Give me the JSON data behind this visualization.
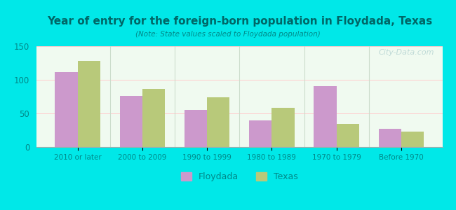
{
  "title": "Year of entry for the foreign-born population in Floydada, Texas",
  "subtitle": "(Note: State values scaled to Floydada population)",
  "categories": [
    "2010 or later",
    "2000 to 2009",
    "1990 to 1999",
    "1980 to 1989",
    "1970 to 1979",
    "Before 1970"
  ],
  "floydada_values": [
    111,
    76,
    55,
    40,
    91,
    27
  ],
  "texas_values": [
    128,
    86,
    74,
    58,
    34,
    23
  ],
  "floydada_color": "#cc99cc",
  "texas_color": "#b8c97a",
  "background_outer": "#00e8e8",
  "background_plot_top": "#f5fff5",
  "background_plot_bottom": "#e8f5e8",
  "title_color": "#006666",
  "subtitle_color": "#008888",
  "tick_color": "#008888",
  "ylim": [
    0,
    150
  ],
  "yticks": [
    0,
    50,
    100,
    150
  ],
  "bar_width": 0.35,
  "watermark": "City-Data.com",
  "legend_labels": [
    "Floydada",
    "Texas"
  ]
}
